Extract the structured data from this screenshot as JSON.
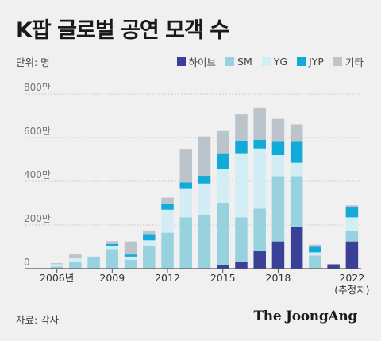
{
  "title": "K팝 글로벌 공연 모객 수",
  "unit": "단위: 명",
  "source": "자료: 각사",
  "brand": "The JoongAng",
  "colors": {
    "hybe": "#3a3f97",
    "sm": "#99d2df",
    "yg": "#d3edf4",
    "jyp": "#12aad8",
    "etc": "#bcc4cb",
    "grid": "#cccccc",
    "axis": "#555555"
  },
  "chart_data": {
    "type": "bar",
    "stacked": true,
    "title": "K팝 글로벌 공연 모객 수",
    "ylabel": "단위: 명",
    "ylim": [
      0,
      8000000
    ],
    "yticks": [
      {
        "value": 0,
        "label": "0"
      },
      {
        "value": 2000000,
        "label": "200만"
      },
      {
        "value": 4000000,
        "label": "400만"
      },
      {
        "value": 6000000,
        "label": "600만"
      },
      {
        "value": 8000000,
        "label": "800만"
      }
    ],
    "categories": [
      "2006",
      "2007",
      "2008",
      "2009",
      "2010",
      "2011",
      "2012",
      "2013",
      "2014",
      "2015",
      "2016",
      "2017",
      "2018",
      "2019",
      "2020",
      "2021",
      "2022"
    ],
    "xtick_labels": [
      {
        "category": "2006",
        "lines": [
          "2006년"
        ]
      },
      {
        "category": "2009",
        "lines": [
          "2009"
        ]
      },
      {
        "category": "2012",
        "lines": [
          "2012"
        ]
      },
      {
        "category": "2015",
        "lines": [
          "2015"
        ]
      },
      {
        "category": "2018",
        "lines": [
          "2018"
        ]
      },
      {
        "category": "2022",
        "lines": [
          "2022",
          "(추정치)"
        ]
      }
    ],
    "series": [
      {
        "name": "하이브",
        "key": "hybe",
        "values": [
          0,
          0,
          0,
          0,
          0,
          0,
          0,
          0,
          0,
          150000,
          300000,
          800000,
          1250000,
          1900000,
          0,
          200000,
          1250000
        ]
      },
      {
        "name": "SM",
        "key": "sm",
        "values": [
          100000,
          300000,
          550000,
          900000,
          400000,
          1050000,
          1650000,
          2350000,
          2450000,
          2850000,
          2050000,
          1950000,
          2950000,
          2300000,
          600000,
          0,
          500000
        ]
      },
      {
        "name": "YG",
        "key": "yg",
        "values": [
          100000,
          200000,
          0,
          150000,
          150000,
          250000,
          1050000,
          1300000,
          1450000,
          1550000,
          2900000,
          2750000,
          1000000,
          650000,
          150000,
          0,
          600000
        ]
      },
      {
        "name": "JYP",
        "key": "jyp",
        "values": [
          0,
          0,
          0,
          80000,
          100000,
          250000,
          250000,
          300000,
          350000,
          700000,
          600000,
          400000,
          600000,
          950000,
          250000,
          0,
          450000
        ]
      },
      {
        "name": "기타",
        "key": "etc",
        "values": [
          50000,
          150000,
          0,
          130000,
          600000,
          200000,
          300000,
          1500000,
          1800000,
          1050000,
          1200000,
          1450000,
          1050000,
          800000,
          100000,
          0,
          100000
        ]
      }
    ]
  }
}
